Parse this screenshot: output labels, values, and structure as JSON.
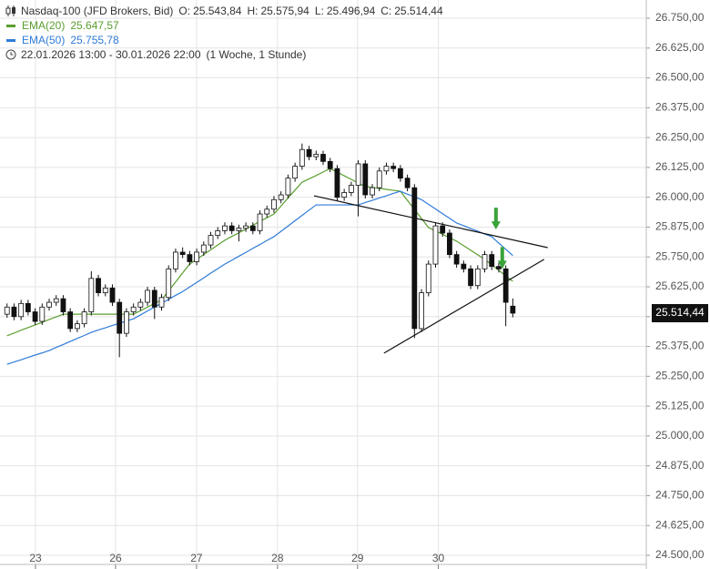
{
  "chart_data": {
    "type": "candlestick",
    "title": "Nasdaq-100 (JFD Brokers, Bid)",
    "ohlc_labels": [
      {
        "name": "O:",
        "text": "25.543,84"
      },
      {
        "name": "H:",
        "text": "25.575,94"
      },
      {
        "name": "L:",
        "text": "25.496,94"
      },
      {
        "name": "C:",
        "text": "25.514,44"
      }
    ],
    "period": "22.01.2026 13:00 - 30.01.2026 22:00",
    "period_note": "(1 Woche, 1 Stunde)",
    "x": [
      1,
      2,
      3,
      4,
      5,
      6,
      7,
      8,
      9,
      10,
      11,
      12,
      13,
      14,
      15,
      16,
      17,
      18,
      19,
      20,
      21,
      22,
      23,
      24,
      25,
      26,
      27,
      28,
      29,
      30,
      31,
      32,
      33,
      34,
      35,
      36,
      37,
      38,
      39,
      40,
      41,
      42,
      43,
      44,
      45,
      46,
      47,
      48,
      49,
      50,
      51,
      52,
      53,
      54,
      55,
      56,
      57,
      58,
      59,
      60,
      61,
      62,
      63,
      64,
      65,
      66,
      67,
      68,
      69,
      70,
      71,
      72,
      73
    ],
    "open": [
      25510,
      25540,
      25500,
      25555,
      25520,
      25480,
      25540,
      25560,
      25575,
      25520,
      25450,
      25470,
      25520,
      25660,
      25600,
      25620,
      25560,
      25430,
      25520,
      25540,
      25560,
      25610,
      25540,
      25580,
      25700,
      25770,
      25760,
      25730,
      25770,
      25800,
      25840,
      25860,
      25880,
      25860,
      25870,
      25880,
      25860,
      25930,
      25950,
      25990,
      26010,
      26080,
      26130,
      26200,
      26170,
      26180,
      26150,
      26120,
      26000,
      26020,
      26050,
      26140,
      26010,
      26040,
      26110,
      26130,
      26120,
      26080,
      26040,
      25450,
      25600,
      25720,
      25880,
      25850,
      25760,
      25720,
      25700,
      25630,
      25700,
      25760,
      25710,
      25700,
      25543.84
    ],
    "high": [
      25555,
      25555,
      25570,
      25570,
      25535,
      25555,
      25575,
      25590,
      25590,
      25535,
      25485,
      25535,
      25690,
      25675,
      25635,
      25635,
      25575,
      25535,
      25555,
      25575,
      25625,
      25625,
      25595,
      25715,
      25785,
      25790,
      25775,
      25785,
      25815,
      25855,
      25875,
      25895,
      25895,
      25885,
      25895,
      25895,
      25945,
      25965,
      26005,
      26025,
      26095,
      26145,
      26225,
      26215,
      26195,
      26195,
      26165,
      26135,
      26035,
      26065,
      26155,
      26155,
      26055,
      26125,
      26145,
      26145,
      26135,
      26095,
      26055,
      25615,
      25735,
      25895,
      25895,
      25865,
      25775,
      25735,
      25715,
      25715,
      25775,
      25775,
      25725,
      25715,
      25575.94
    ],
    "low": [
      25495,
      25485,
      25485,
      25505,
      25465,
      25465,
      25525,
      25545,
      25505,
      25435,
      25435,
      25455,
      25505,
      25585,
      25585,
      25545,
      25330,
      25415,
      25505,
      25525,
      25545,
      25490,
      25525,
      25565,
      25685,
      25745,
      25715,
      25715,
      25755,
      25785,
      25825,
      25845,
      25845,
      25815,
      25855,
      25845,
      25845,
      25915,
      25935,
      25975,
      25995,
      26065,
      26115,
      26155,
      26155,
      26135,
      26105,
      25985,
      25985,
      26005,
      25920,
      25995,
      25995,
      26025,
      26095,
      26105,
      26065,
      26025,
      25410,
      25435,
      25585,
      25705,
      25835,
      25745,
      25705,
      25685,
      25615,
      25615,
      25685,
      25695,
      25685,
      25460,
      25496.94
    ],
    "close": [
      25540,
      25500,
      25555,
      25520,
      25480,
      25540,
      25560,
      25575,
      25520,
      25450,
      25470,
      25520,
      25660,
      25600,
      25620,
      25560,
      25430,
      25520,
      25540,
      25560,
      25610,
      25540,
      25580,
      25700,
      25770,
      25760,
      25730,
      25770,
      25800,
      25840,
      25860,
      25880,
      25860,
      25870,
      25880,
      25860,
      25930,
      25950,
      25990,
      26010,
      26080,
      26130,
      26200,
      26170,
      26180,
      26150,
      26120,
      26000,
      26020,
      26050,
      26140,
      26010,
      26040,
      26110,
      26130,
      26120,
      26080,
      26040,
      25450,
      25600,
      25720,
      25880,
      25850,
      25760,
      25720,
      25700,
      25630,
      25700,
      25760,
      25710,
      25700,
      25560,
      25514.44
    ],
    "up_color": "#ffffff",
    "down_color": "#111111",
    "series": [
      {
        "name": "EMA(20)",
        "color": "#5a9e2f",
        "last_label": "25.647,57",
        "values": [
          25420,
          25431,
          25443,
          25454,
          25465,
          25476,
          25488,
          25499,
          25510,
          25510,
          25510,
          25510,
          25510,
          25510,
          25510,
          25510,
          25510,
          25510,
          25510,
          25525,
          25540,
          25555,
          25570,
          25608,
          25645,
          25683,
          25720,
          25740,
          25760,
          25780,
          25800,
          25820,
          25836,
          25851,
          25867,
          25883,
          25899,
          25914,
          25930,
          25963,
          25997,
          26030,
          26063,
          26077,
          26091,
          26106,
          26120,
          26105,
          26090,
          26075,
          26060,
          26045,
          26041,
          26037,
          26033,
          26029,
          26025,
          25987,
          25949,
          25911,
          25873,
          25859,
          25845,
          25830,
          25816,
          25797,
          25778,
          25759,
          25740,
          25717,
          25694,
          25671,
          25647.57
        ]
      },
      {
        "name": "EMA(50)",
        "color": "#2f7bd8",
        "last_label": "25.755,78",
        "values": [
          25300,
          25310,
          25319,
          25329,
          25339,
          25348,
          25358,
          25371,
          25383,
          25396,
          25409,
          25421,
          25434,
          25444,
          25453,
          25463,
          25472,
          25482,
          25491,
          25507,
          25524,
          25540,
          25556,
          25572,
          25589,
          25605,
          25624,
          25643,
          25662,
          25682,
          25701,
          25720,
          25736,
          25753,
          25769,
          25786,
          25802,
          25819,
          25835,
          25857,
          25879,
          25902,
          25924,
          25946,
          25968,
          25968,
          25968,
          25968,
          25968,
          25968,
          25968,
          25978,
          25987,
          25997,
          26006,
          26016,
          26025,
          26013,
          26002,
          25990,
          25970,
          25951,
          25931,
          25912,
          25892,
          25881,
          25869,
          25858,
          25846,
          25835,
          25808,
          25782,
          25755.78
        ]
      }
    ],
    "last_label": "25.514,44",
    "trendlines": [
      {
        "x": [
          44.7,
          77.97
        ],
        "y": [
          26006,
          25789
        ],
        "color": "#111111"
      },
      {
        "x": [
          54.66,
          77.46
        ],
        "y": [
          25347,
          25740
        ],
        "color": "#111111"
      }
    ],
    "arrows": [
      {
        "x": 70.6,
        "y": 25865,
        "color": "#3aa33a"
      },
      {
        "x": 71.5,
        "y": 25700,
        "color": "#3aa33a"
      }
    ],
    "xlim": [
      0,
      92
    ],
    "ylim": [
      24500,
      26750
    ],
    "xticks": [
      {
        "value": 5.05,
        "label": "23"
      },
      {
        "value": 16.45,
        "label": "26"
      },
      {
        "value": 27.98,
        "label": "27"
      },
      {
        "value": 39.5,
        "label": "28"
      },
      {
        "value": 50.9,
        "label": "29"
      },
      {
        "value": 62.4,
        "label": "30"
      }
    ],
    "yticks": [
      {
        "value": 26750,
        "label": "26.750,00"
      },
      {
        "value": 26625,
        "label": "26.625,00"
      },
      {
        "value": 26500,
        "label": "26.500,00"
      },
      {
        "value": 26375,
        "label": "26.375,00"
      },
      {
        "value": 26250,
        "label": "26.250,00"
      },
      {
        "value": 26125,
        "label": "26.125,00"
      },
      {
        "value": 26000,
        "label": "26.000,00"
      },
      {
        "value": 25875,
        "label": "25.875,00"
      },
      {
        "value": 25750,
        "label": "25.750,00"
      },
      {
        "value": 25625,
        "label": "25.625,00"
      },
      {
        "value": 25500,
        "label": "25.500,00"
      },
      {
        "value": 25375,
        "label": "25.375,00"
      },
      {
        "value": 25250,
        "label": "25.250,00"
      },
      {
        "value": 25125,
        "label": "25.125,00"
      },
      {
        "value": 25000,
        "label": "25.000,00"
      },
      {
        "value": 24875,
        "label": "24.875,00"
      },
      {
        "value": 24750,
        "label": "24.750,00"
      },
      {
        "value": 24625,
        "label": "24.625,00"
      },
      {
        "value": 24500,
        "label": "24.500,00"
      }
    ],
    "grid": true
  }
}
